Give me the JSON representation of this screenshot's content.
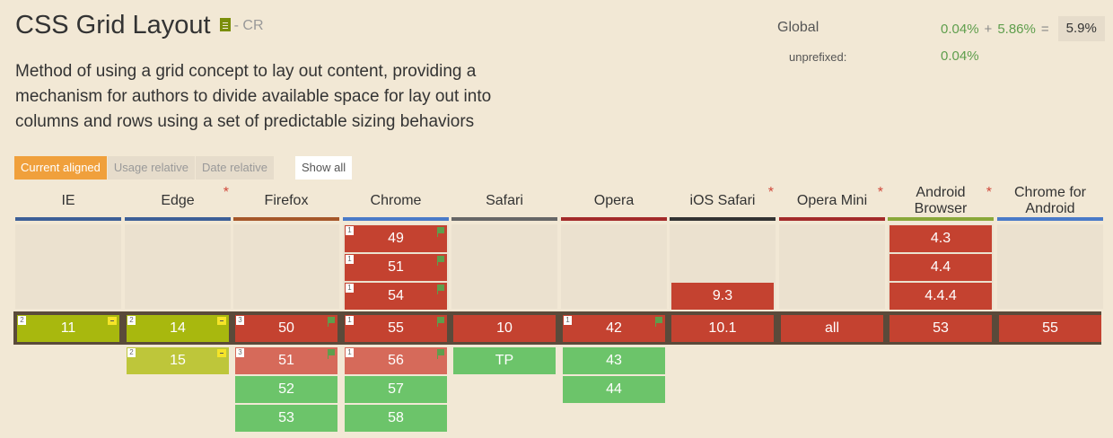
{
  "feature": {
    "title": "CSS Grid Layout",
    "status": "- CR",
    "description": "Method of using a grid concept to lay out content, providing a mechanism for authors to divide available space for lay out into columns and rows using a set of predictable sizing behaviors"
  },
  "usage": {
    "label": "Global",
    "prefixed": "0.04%",
    "plus": "+",
    "partial": "5.86%",
    "equals": "=",
    "total": "5.9%",
    "unprefixed_label": "unprefixed:",
    "unprefixed": "0.04%"
  },
  "view_tabs": [
    {
      "label": "Current aligned",
      "active": true
    },
    {
      "label": "Usage relative",
      "active": false
    },
    {
      "label": "Date relative",
      "active": false
    }
  ],
  "show_all_label": "Show all",
  "browsers": [
    {
      "name": "IE",
      "asterisk": "",
      "color": "#3d5f97"
    },
    {
      "name": "Edge",
      "asterisk": "*",
      "color": "#3d5f97"
    },
    {
      "name": "Firefox",
      "asterisk": "",
      "color": "#a6572a"
    },
    {
      "name": "Chrome",
      "asterisk": "",
      "color": "#4a7ac8"
    },
    {
      "name": "Safari",
      "asterisk": "",
      "color": "#666666"
    },
    {
      "name": "Opera",
      "asterisk": "",
      "color": "#a32a2a"
    },
    {
      "name": "iOS Safari",
      "asterisk": "*",
      "color": "#333333"
    },
    {
      "name": "Opera Mini",
      "asterisk": "*",
      "color": "#a32a2a"
    },
    {
      "name": "Android Browser",
      "asterisk": "*",
      "color": "#8aa83a"
    },
    {
      "name": "Chrome for Android",
      "asterisk": "",
      "color": "#4a7ac8"
    }
  ],
  "versions": [
    [
      {
        "v": "11",
        "row": 0,
        "s": "olive",
        "note": "2",
        "pfx": true
      }
    ],
    [
      {
        "v": "14",
        "row": 0,
        "s": "olive",
        "note": "2",
        "pfx": true
      },
      {
        "v": "15",
        "row": 1,
        "s": "lolive",
        "note": "2",
        "pfx": true
      }
    ],
    [
      {
        "v": "50",
        "row": 0,
        "s": "red",
        "note": "3",
        "flag": true
      },
      {
        "v": "51",
        "row": 1,
        "s": "lred",
        "note": "3",
        "flag": true
      },
      {
        "v": "52",
        "row": 2,
        "s": "green"
      },
      {
        "v": "53",
        "row": 3,
        "s": "green"
      }
    ],
    [
      {
        "v": "49",
        "row": -3,
        "s": "red",
        "note": "1",
        "flag": true
      },
      {
        "v": "51",
        "row": -2,
        "s": "red",
        "note": "1",
        "flag": true
      },
      {
        "v": "54",
        "row": -1,
        "s": "red",
        "note": "1",
        "flag": true
      },
      {
        "v": "55",
        "row": 0,
        "s": "red",
        "note": "1",
        "flag": true
      },
      {
        "v": "56",
        "row": 1,
        "s": "lred",
        "note": "1",
        "flag": true
      },
      {
        "v": "57",
        "row": 2,
        "s": "green"
      },
      {
        "v": "58",
        "row": 3,
        "s": "green"
      }
    ],
    [
      {
        "v": "10",
        "row": 0,
        "s": "red"
      },
      {
        "v": "TP",
        "row": 1,
        "s": "green"
      }
    ],
    [
      {
        "v": "42",
        "row": 0,
        "s": "red",
        "note": "1",
        "flag": true
      },
      {
        "v": "43",
        "row": 1,
        "s": "green"
      },
      {
        "v": "44",
        "row": 2,
        "s": "green"
      }
    ],
    [
      {
        "v": "9.3",
        "row": -1,
        "s": "red"
      },
      {
        "v": "10.1",
        "row": 0,
        "s": "red"
      }
    ],
    [
      {
        "v": "all",
        "row": 0,
        "s": "red"
      }
    ],
    [
      {
        "v": "4.3",
        "row": -3,
        "s": "red"
      },
      {
        "v": "4.4",
        "row": -2,
        "s": "red"
      },
      {
        "v": "4.4.4",
        "row": -1,
        "s": "red"
      },
      {
        "v": "53",
        "row": 0,
        "s": "red"
      }
    ],
    [
      {
        "v": "55",
        "row": 0,
        "s": "red"
      }
    ]
  ]
}
